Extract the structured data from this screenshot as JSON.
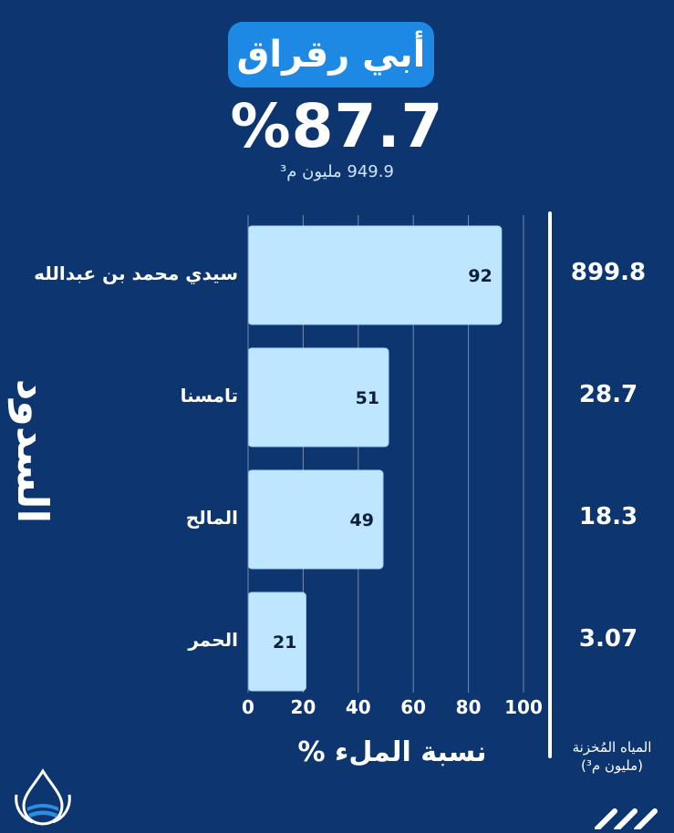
{
  "header": {
    "region": "أبي رقراق",
    "fill_rate": "%87.7",
    "volume": "949.9 مليون م³"
  },
  "side_label": "السدود",
  "colors": {
    "background": "#0d3670",
    "badge": "#1e88e5",
    "bar": "#bfe6ff",
    "bar_edge": "#9fd4fb",
    "gridline": "#7a8aa3"
  },
  "stored_title": "المياه المُخزنة (مليون م³)",
  "chart_data": {
    "type": "bar",
    "orientation": "horizontal",
    "categories": [
      "سيدي محمد بن عبدالله",
      "تامسنا",
      "المالح",
      "الحمر"
    ],
    "values": [
      92,
      51,
      49,
      21
    ],
    "stored_water": [
      "899.8",
      "28.7",
      "18.3",
      "3.07"
    ],
    "xlabel": "نسبة الملء %",
    "xlim": [
      0,
      100
    ],
    "xticks": [
      0,
      20,
      40,
      60,
      80,
      100
    ],
    "grid": true
  },
  "icons": {
    "logo": "water-drop-logo-icon",
    "corner": "chevrons-icon"
  }
}
